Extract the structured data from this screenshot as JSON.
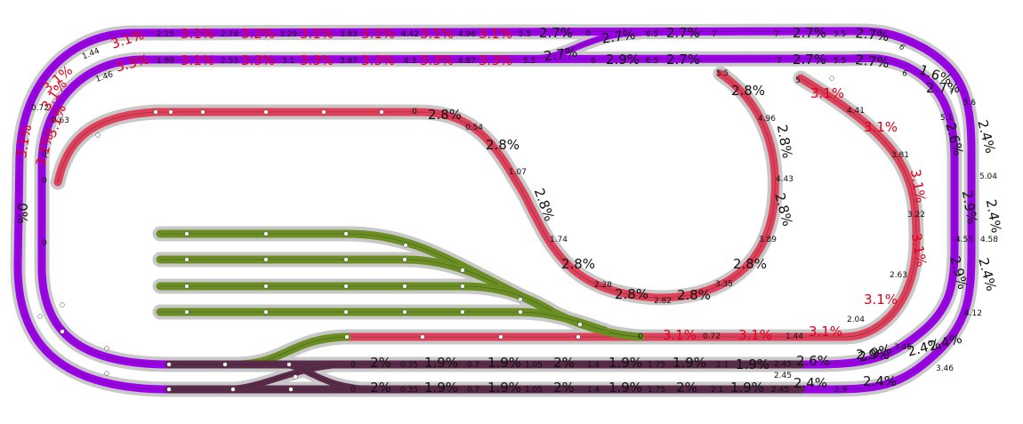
{
  "colors": {
    "mainline": "#9b00e8",
    "helix": "#e0405a",
    "yard": "#6b8e23",
    "staging": "#5a2a4a",
    "bed": "#c8c8c8",
    "grade_red": "#e0001b",
    "text": "#111111"
  },
  "labels": [
    {
      "t": "2.15",
      "s": "s"
    },
    {
      "t": "3.1%",
      "s": "r"
    },
    {
      "t": "2.74",
      "s": "s"
    },
    {
      "t": "3.2%",
      "s": "r"
    },
    {
      "t": "3.29",
      "s": "s"
    },
    {
      "t": "3.1%",
      "s": "r"
    },
    {
      "t": "3.83",
      "s": "s"
    },
    {
      "t": "3.1%",
      "s": "r"
    },
    {
      "t": "4.42",
      "s": "s"
    },
    {
      "t": "3.1%",
      "s": "r"
    },
    {
      "t": "4.96",
      "s": "s"
    },
    {
      "t": "3.1%",
      "s": "r"
    },
    {
      "t": "5.5",
      "s": "s"
    },
    {
      "t": "2.7%",
      "s": "g"
    },
    {
      "t": "6",
      "s": "s"
    },
    {
      "t": "2.7%",
      "s": "g"
    },
    {
      "t": "6.5",
      "s": "s"
    },
    {
      "t": "2.7%",
      "s": "g"
    },
    {
      "t": "7",
      "s": "s"
    },
    {
      "t": "7",
      "s": "s"
    },
    {
      "t": "2.7%",
      "s": "g"
    },
    {
      "t": "5.5",
      "s": "s"
    },
    {
      "t": "2.7%",
      "s": "g"
    },
    {
      "t": "6",
      "s": "s"
    },
    {
      "t": "3.1%",
      "s": "r"
    },
    {
      "t": "1.44",
      "s": "s"
    },
    {
      "t": "3.1%",
      "s": "r"
    },
    {
      "t": "3.1%",
      "s": "r"
    },
    {
      "t": "0.72",
      "s": "s"
    },
    {
      "t": "3.1%",
      "s": "r"
    },
    {
      "t": "0",
      "s": "s"
    },
    {
      "t": "0",
      "s": "s"
    },
    {
      "t": "0%",
      "s": "g"
    },
    {
      "t": "3.1%",
      "s": "r"
    },
    {
      "t": "1.46",
      "s": "s"
    },
    {
      "t": "3.3%",
      "s": "r"
    },
    {
      "t": "0.63",
      "s": "s"
    },
    {
      "t": "3.1%",
      "s": "r"
    },
    {
      "t": "0",
      "s": "s"
    },
    {
      "t": "1.89",
      "s": "s"
    },
    {
      "t": "3.1%",
      "s": "r"
    },
    {
      "t": "2.53",
      "s": "s"
    },
    {
      "t": "3.3%",
      "s": "r"
    },
    {
      "t": "3.1",
      "s": "s"
    },
    {
      "t": "3.3%",
      "s": "r"
    },
    {
      "t": "3.67",
      "s": "s"
    },
    {
      "t": "3.3%",
      "s": "r"
    },
    {
      "t": "4.3",
      "s": "s"
    },
    {
      "t": "3.3%",
      "s": "r"
    },
    {
      "t": "4.87",
      "s": "s"
    },
    {
      "t": "3.3%",
      "s": "r"
    },
    {
      "t": "5.5",
      "s": "s"
    },
    {
      "t": "2.7%",
      "s": "g"
    },
    {
      "t": "6",
      "s": "s"
    },
    {
      "t": "2.9%",
      "s": "g"
    },
    {
      "t": "6.5",
      "s": "s"
    },
    {
      "t": "2.7%",
      "s": "g"
    },
    {
      "t": "7",
      "s": "s"
    },
    {
      "t": "2.7%",
      "s": "g"
    },
    {
      "t": "5.5",
      "s": "s"
    },
    {
      "t": "2.7%",
      "s": "g"
    },
    {
      "t": "6",
      "s": "s"
    },
    {
      "t": "1.6%",
      "s": "g"
    },
    {
      "t": "2.7%",
      "s": "g"
    },
    {
      "t": "7",
      "s": "s"
    },
    {
      "t": "0",
      "s": "s"
    },
    {
      "t": "2.8%",
      "s": "g"
    },
    {
      "t": "0.54",
      "s": "s"
    },
    {
      "t": "2.8%",
      "s": "g"
    },
    {
      "t": "1.07",
      "s": "s"
    },
    {
      "t": "2.8%",
      "s": "g"
    },
    {
      "t": "1.74",
      "s": "s"
    },
    {
      "t": "2.8%",
      "s": "g"
    },
    {
      "t": "2.28",
      "s": "s"
    },
    {
      "t": "2.8%",
      "s": "g"
    },
    {
      "t": "2.82",
      "s": "s"
    },
    {
      "t": "2.8%",
      "s": "g"
    },
    {
      "t": "3.35",
      "s": "s"
    },
    {
      "t": "2.8%",
      "s": "g"
    },
    {
      "t": "3.89",
      "s": "s"
    },
    {
      "t": "2.8%",
      "s": "g"
    },
    {
      "t": "4.43",
      "s": "s"
    },
    {
      "t": "2.8%",
      "s": "g"
    },
    {
      "t": "4.96",
      "s": "s"
    },
    {
      "t": "2.8%",
      "s": "g"
    },
    {
      "t": "5.5",
      "s": "s"
    },
    {
      "t": "5",
      "s": "s"
    },
    {
      "t": "3.1%",
      "s": "r"
    },
    {
      "t": "4.41",
      "s": "s"
    },
    {
      "t": "3.1%",
      "s": "r"
    },
    {
      "t": "3.81",
      "s": "s"
    },
    {
      "t": "3.1%",
      "s": "r"
    },
    {
      "t": "3.22",
      "s": "s"
    },
    {
      "t": "3.1%",
      "s": "r"
    },
    {
      "t": "2.63",
      "s": "s"
    },
    {
      "t": "3.1%",
      "s": "r"
    },
    {
      "t": "2.04",
      "s": "s"
    },
    {
      "t": "3.1%",
      "s": "r"
    },
    {
      "t": "1.44",
      "s": "s"
    },
    {
      "t": "3.1%",
      "s": "r"
    },
    {
      "t": "0.72",
      "s": "s"
    },
    {
      "t": "3.1%",
      "s": "r"
    },
    {
      "t": "0",
      "s": "s"
    },
    {
      "t": "5.1",
      "s": "s"
    },
    {
      "t": "2.6%",
      "s": "g"
    },
    {
      "t": "2.9%",
      "s": "g"
    },
    {
      "t": "4.55",
      "s": "s"
    },
    {
      "t": "2.9%",
      "s": "g"
    },
    {
      "t": "5.6",
      "s": "s"
    },
    {
      "t": "2.4%",
      "s": "g"
    },
    {
      "t": "5.04",
      "s": "s"
    },
    {
      "t": "2.4%",
      "s": "g"
    },
    {
      "t": "4.58",
      "s": "s"
    },
    {
      "t": "2.4%",
      "s": "g"
    },
    {
      "t": "4.12",
      "s": "s"
    },
    {
      "t": "2.4%",
      "s": "g"
    },
    {
      "t": "3.46",
      "s": "s"
    },
    {
      "t": "2.4%",
      "s": "g"
    },
    {
      "t": "3.45",
      "s": "s"
    },
    {
      "t": "2.9%",
      "s": "g"
    },
    {
      "t": "0",
      "s": "s"
    },
    {
      "t": "2%",
      "s": "g"
    },
    {
      "t": "0.35",
      "s": "s"
    },
    {
      "t": "1.9%",
      "s": "g"
    },
    {
      "t": "0.7",
      "s": "s"
    },
    {
      "t": "1.9%",
      "s": "g"
    },
    {
      "t": "1.05",
      "s": "s"
    },
    {
      "t": "2%",
      "s": "g"
    },
    {
      "t": "1.4",
      "s": "s"
    },
    {
      "t": "1.9%",
      "s": "g"
    },
    {
      "t": "1.75",
      "s": "s"
    },
    {
      "t": "1.9%",
      "s": "g"
    },
    {
      "t": "2.1",
      "s": "s"
    },
    {
      "t": "1.9%",
      "s": "g"
    },
    {
      "t": "2.45",
      "s": "s"
    },
    {
      "t": "2.6%",
      "s": "g"
    },
    {
      "t": "2.9%",
      "s": "g"
    },
    {
      "t": "0",
      "s": "s"
    },
    {
      "t": "2%",
      "s": "g"
    },
    {
      "t": "0.35",
      "s": "s"
    },
    {
      "t": "1.9%",
      "s": "g"
    },
    {
      "t": "0.7",
      "s": "s"
    },
    {
      "t": "1.9%",
      "s": "g"
    },
    {
      "t": "1.05",
      "s": "s"
    },
    {
      "t": "2%",
      "s": "g"
    },
    {
      "t": "1.4",
      "s": "s"
    },
    {
      "t": "1.9%",
      "s": "g"
    },
    {
      "t": "1.75",
      "s": "s"
    },
    {
      "t": "2%",
      "s": "g"
    },
    {
      "t": "2.1",
      "s": "s"
    },
    {
      "t": "1.9%",
      "s": "g"
    },
    {
      "t": "2.45",
      "s": "s"
    },
    {
      "t": "2.4%",
      "s": "g"
    },
    {
      "t": "2.9",
      "s": "s"
    },
    {
      "t": "2.4%",
      "s": "g"
    },
    {
      "t": "2.45",
      "s": "s"
    }
  ]
}
